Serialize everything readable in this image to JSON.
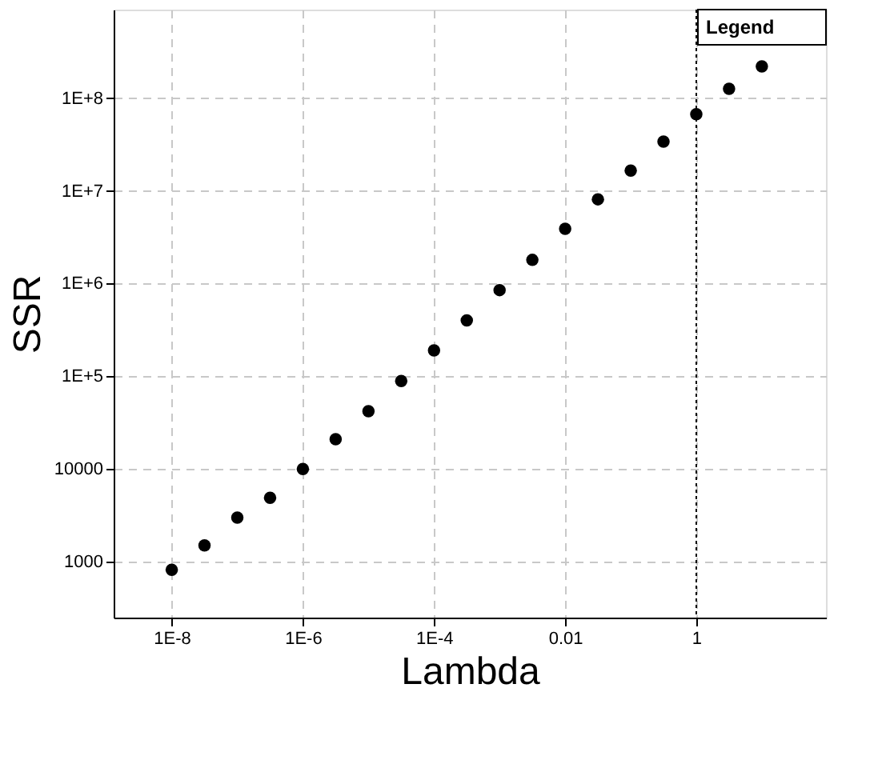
{
  "chart_data": {
    "type": "scatter",
    "xlabel": "Lambda",
    "ylabel": "SSR",
    "legend_title": "Legend",
    "log": "xy",
    "grid": true,
    "marker": "circle",
    "x": [
      1e-08,
      3.16e-08,
      1e-07,
      3.16e-07,
      1e-06,
      3.16e-06,
      1e-05,
      3.16e-05,
      0.0001,
      0.000316,
      0.001,
      0.00316,
      0.01,
      0.0316,
      0.1,
      0.316,
      1,
      3.16,
      10
    ],
    "series": [
      {
        "color": "#000000",
        "values": [
          820,
          1500,
          3000,
          4900,
          10000,
          21000,
          42000,
          89000,
          190000,
          400000,
          850000,
          1800000,
          3900000,
          8100000,
          16500000,
          34000000,
          67000000,
          126000000,
          220000000
        ]
      }
    ],
    "xlim": [
      1.3e-09,
      95
    ],
    "ylim": [
      250,
      900000000
    ],
    "xticks": [
      {
        "value": 1e-08,
        "label": "1E-8"
      },
      {
        "value": 1e-06,
        "label": "1E-6"
      },
      {
        "value": 0.0001,
        "label": "1E-4"
      },
      0.01,
      1
    ],
    "yticks": [
      1000,
      10000,
      {
        "value": 100000,
        "label": "1E+5"
      },
      {
        "value": 1000000,
        "label": "1E+6"
      },
      {
        "value": 10000000,
        "label": "1E+7"
      },
      {
        "value": 100000000,
        "label": "1E+8"
      }
    ],
    "ref_lines": [
      {
        "axis": "x",
        "value": 1,
        "color": "#000000",
        "line_style": "dotted"
      }
    ]
  }
}
